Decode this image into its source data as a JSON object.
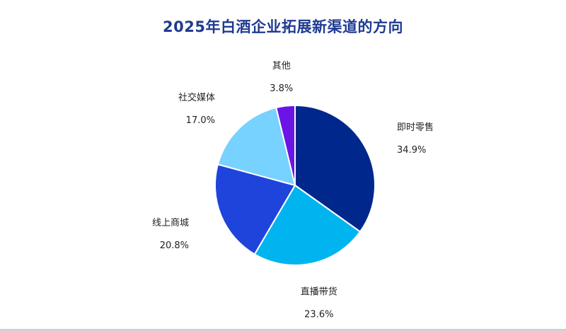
{
  "chart_data": {
    "type": "pie",
    "title": "2025年白酒企业拓展新渠道的方向",
    "slices": [
      {
        "name": "即时零售",
        "value": 34.9,
        "value_label": "34.9%",
        "color": "#00288c"
      },
      {
        "name": "直播带货",
        "value": 23.6,
        "value_label": "23.6%",
        "color": "#00b4f0"
      },
      {
        "name": "线上商城",
        "value": 20.8,
        "value_label": "20.8%",
        "color": "#1f44db"
      },
      {
        "name": "社交媒体",
        "value": 17.0,
        "value_label": "17.0%",
        "color": "#78d2ff"
      },
      {
        "name": "其他",
        "value": 3.8,
        "value_label": "3.8%",
        "color": "#6a14e6"
      }
    ],
    "start": "12 o'clock",
    "direction": "clockwise",
    "legend": "none"
  }
}
